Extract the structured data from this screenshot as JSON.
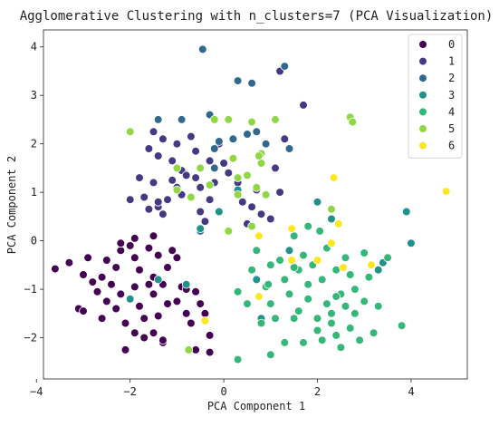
{
  "chart_data": {
    "type": "scatter",
    "title": "Agglomerative Clustering with n_clusters=7 (PCA Visualization)",
    "xlabel": "PCA Component 1",
    "ylabel": "PCA Component 2",
    "xlim": [
      -3.85,
      5.2
    ],
    "ylim": [
      -2.85,
      4.35
    ],
    "x_ticks": [
      -4,
      -2,
      0,
      2,
      4
    ],
    "y_ticks": [
      -2,
      -1,
      0,
      1,
      2,
      3,
      4
    ],
    "grid": false,
    "legend_position": "top-right",
    "colors": [
      "#440154",
      "#443983",
      "#31688e",
      "#21918c",
      "#35b779",
      "#90d743",
      "#fde725"
    ],
    "series": [
      {
        "name": "0",
        "points": [
          [
            -3.6,
            -0.58
          ],
          [
            -3.3,
            -0.45
          ],
          [
            -3.0,
            -0.7
          ],
          [
            -2.9,
            -0.35
          ],
          [
            -3.1,
            -1.4
          ],
          [
            -3.0,
            -1.45
          ],
          [
            -2.8,
            -0.85
          ],
          [
            -2.7,
            -1.05
          ],
          [
            -2.6,
            -0.75
          ],
          [
            -2.5,
            -0.4
          ],
          [
            -2.3,
            -0.55
          ],
          [
            -2.4,
            -0.9
          ],
          [
            -2.2,
            -1.1
          ],
          [
            -2.5,
            -1.25
          ],
          [
            -2.3,
            -1.4
          ],
          [
            -2.6,
            -1.6
          ],
          [
            -2.2,
            -0.2
          ],
          [
            -2.0,
            -0.1
          ],
          [
            -1.9,
            -0.35
          ],
          [
            -1.8,
            -0.6
          ],
          [
            -1.9,
            -0.95
          ],
          [
            -2.0,
            -1.2
          ],
          [
            -1.8,
            -1.35
          ],
          [
            -1.7,
            -1.6
          ],
          [
            -2.1,
            -1.7
          ],
          [
            -1.9,
            -1.9
          ],
          [
            -2.1,
            -2.25
          ],
          [
            -1.6,
            -0.15
          ],
          [
            -1.5,
            0.1
          ],
          [
            -1.4,
            -0.3
          ],
          [
            -1.5,
            -0.75
          ],
          [
            -1.3,
            -0.9
          ],
          [
            -1.5,
            -1.1
          ],
          [
            -1.2,
            -1.3
          ],
          [
            -1.4,
            -1.55
          ],
          [
            -1.5,
            -1.9
          ],
          [
            -1.3,
            -2.1
          ],
          [
            -1.2,
            -0.55
          ],
          [
            -1.0,
            -0.35
          ],
          [
            -0.9,
            -0.95
          ],
          [
            -1.0,
            -1.25
          ],
          [
            -0.8,
            -1.0
          ],
          [
            -0.8,
            -1.5
          ],
          [
            -0.7,
            -1.7
          ],
          [
            -0.6,
            -1.05
          ],
          [
            -0.5,
            -1.3
          ],
          [
            -0.4,
            -1.5
          ],
          [
            -0.3,
            -1.95
          ],
          [
            -0.6,
            -2.25
          ],
          [
            -0.3,
            -2.3
          ],
          [
            -1.7,
            -2.0
          ],
          [
            -1.3,
            -2.05
          ],
          [
            -1.9,
            0.05
          ],
          [
            -2.2,
            -0.05
          ],
          [
            -1.6,
            -0.9
          ],
          [
            -1.1,
            -0.2
          ]
        ]
      },
      {
        "name": "1",
        "points": [
          [
            -2.0,
            0.85
          ],
          [
            -1.8,
            1.3
          ],
          [
            -1.7,
            0.9
          ],
          [
            -1.6,
            0.65
          ],
          [
            -1.6,
            1.9
          ],
          [
            -1.5,
            2.25
          ],
          [
            -1.4,
            1.75
          ],
          [
            -1.5,
            1.2
          ],
          [
            -1.4,
            0.7
          ],
          [
            -1.3,
            0.55
          ],
          [
            -1.2,
            0.85
          ],
          [
            -1.1,
            1.25
          ],
          [
            -1.1,
            1.65
          ],
          [
            -1.0,
            1.1
          ],
          [
            -0.9,
            0.95
          ],
          [
            -0.9,
            1.45
          ],
          [
            -1.0,
            2.0
          ],
          [
            -0.8,
            1.35
          ],
          [
            -0.7,
            2.15
          ],
          [
            -0.6,
            1.85
          ],
          [
            -0.5,
            1.1
          ],
          [
            -0.5,
            0.6
          ],
          [
            -0.4,
            0.4
          ],
          [
            -0.3,
            0.85
          ],
          [
            -0.2,
            1.2
          ],
          [
            -0.3,
            1.65
          ],
          [
            -0.1,
            2.0
          ],
          [
            0.0,
            1.6
          ],
          [
            0.1,
            1.4
          ],
          [
            0.3,
            1.2
          ],
          [
            0.4,
            0.8
          ],
          [
            0.6,
            0.7
          ],
          [
            0.5,
            0.35
          ],
          [
            0.8,
            0.55
          ],
          [
            1.0,
            0.45
          ],
          [
            1.2,
            1.0
          ],
          [
            1.1,
            1.5
          ],
          [
            1.3,
            2.1
          ],
          [
            1.2,
            3.5
          ],
          [
            1.7,
            2.8
          ],
          [
            -1.3,
            2.1
          ],
          [
            -1.4,
            0.8
          ],
          [
            -0.6,
            1.3
          ],
          [
            0.2,
            1.7
          ],
          [
            0.7,
            1.05
          ]
        ]
      },
      {
        "name": "2",
        "points": [
          [
            -0.45,
            3.95
          ],
          [
            0.3,
            3.3
          ],
          [
            0.6,
            3.25
          ],
          [
            1.3,
            3.6
          ],
          [
            1.1,
            2.5
          ],
          [
            0.5,
            2.2
          ],
          [
            0.2,
            2.1
          ],
          [
            -0.3,
            2.6
          ],
          [
            -0.9,
            2.5
          ],
          [
            -0.2,
            1.9
          ],
          [
            -0.1,
            2.05
          ],
          [
            -0.2,
            1.5
          ],
          [
            -0.5,
            0.2
          ],
          [
            0.7,
            2.25
          ],
          [
            0.9,
            2.0
          ],
          [
            1.4,
            1.9
          ],
          [
            -1.4,
            2.5
          ]
        ]
      },
      {
        "name": "3",
        "points": [
          [
            -2.0,
            -1.2
          ],
          [
            -1.4,
            -0.8
          ],
          [
            -0.8,
            -0.9
          ],
          [
            -0.5,
            0.25
          ],
          [
            -0.1,
            0.6
          ],
          [
            0.3,
            1.05
          ],
          [
            1.4,
            -0.2
          ],
          [
            2.0,
            0.8
          ],
          [
            2.3,
            0.45
          ],
          [
            3.3,
            -0.6
          ],
          [
            3.4,
            -0.45
          ],
          [
            3.9,
            0.6
          ],
          [
            4.0,
            -0.05
          ],
          [
            0.7,
            -0.8
          ],
          [
            0.8,
            -1.6
          ]
        ]
      },
      {
        "name": "4",
        "points": [
          [
            0.3,
            -1.05
          ],
          [
            0.5,
            -1.3
          ],
          [
            0.6,
            -0.6
          ],
          [
            0.7,
            -0.2
          ],
          [
            0.8,
            -1.7
          ],
          [
            0.9,
            -0.95
          ],
          [
            1.0,
            -0.5
          ],
          [
            1.0,
            -1.3
          ],
          [
            1.1,
            -1.6
          ],
          [
            1.2,
            -0.4
          ],
          [
            1.3,
            -0.8
          ],
          [
            1.3,
            -2.1
          ],
          [
            1.4,
            -1.1
          ],
          [
            1.5,
            -1.6
          ],
          [
            1.5,
            0.1
          ],
          [
            1.6,
            -0.6
          ],
          [
            1.6,
            -1.45
          ],
          [
            1.7,
            -2.1
          ],
          [
            1.8,
            -0.9
          ],
          [
            1.8,
            -1.2
          ],
          [
            1.8,
            0.3
          ],
          [
            1.9,
            -0.5
          ],
          [
            2.0,
            -1.85
          ],
          [
            2.0,
            -1.6
          ],
          [
            2.1,
            -0.8
          ],
          [
            2.1,
            -2.05
          ],
          [
            2.2,
            -1.3
          ],
          [
            2.2,
            -0.15
          ],
          [
            2.3,
            -1.5
          ],
          [
            2.3,
            -1.7
          ],
          [
            2.4,
            -0.6
          ],
          [
            2.4,
            -1.95
          ],
          [
            2.5,
            -1.1
          ],
          [
            2.5,
            -2.2
          ],
          [
            2.6,
            -1.35
          ],
          [
            2.6,
            -0.35
          ],
          [
            2.7,
            -0.7
          ],
          [
            2.7,
            -1.8
          ],
          [
            2.8,
            -1.0
          ],
          [
            2.8,
            -1.5
          ],
          [
            2.9,
            -2.05
          ],
          [
            3.0,
            -0.25
          ],
          [
            3.0,
            -1.25
          ],
          [
            3.1,
            -0.75
          ],
          [
            3.2,
            -1.9
          ],
          [
            3.3,
            -1.35
          ],
          [
            3.5,
            -0.35
          ],
          [
            3.8,
            -1.75
          ],
          [
            1.0,
            -2.35
          ],
          [
            0.3,
            -2.45
          ],
          [
            1.7,
            -0.3
          ],
          [
            2.05,
            0.2
          ],
          [
            1.5,
            -0.55
          ],
          [
            2.4,
            -1.15
          ],
          [
            0.95,
            -0.9
          ]
        ]
      },
      {
        "name": "5",
        "points": [
          [
            -2.0,
            2.25
          ],
          [
            -0.7,
            0.9
          ],
          [
            -0.5,
            1.5
          ],
          [
            -0.3,
            1.15
          ],
          [
            -0.2,
            2.5
          ],
          [
            0.1,
            2.5
          ],
          [
            0.2,
            1.7
          ],
          [
            0.3,
            1.3
          ],
          [
            0.3,
            0.95
          ],
          [
            0.5,
            1.35
          ],
          [
            0.6,
            2.45
          ],
          [
            0.7,
            1.1
          ],
          [
            0.8,
            1.6
          ],
          [
            0.8,
            1.8
          ],
          [
            0.9,
            0.95
          ],
          [
            1.1,
            2.5
          ],
          [
            -1.0,
            1.5
          ],
          [
            2.3,
            0.65
          ],
          [
            2.7,
            2.55
          ],
          [
            2.75,
            2.45
          ],
          [
            0.1,
            0.2
          ],
          [
            0.6,
            0.3
          ],
          [
            -0.75,
            -2.25
          ],
          [
            -1.0,
            1.05
          ],
          [
            0.75,
            1.75
          ]
        ]
      },
      {
        "name": "6",
        "points": [
          [
            -0.4,
            -1.65
          ],
          [
            0.75,
            -1.15
          ],
          [
            0.75,
            0.1
          ],
          [
            1.45,
            0.25
          ],
          [
            2.0,
            -0.4
          ],
          [
            2.35,
            1.3
          ],
          [
            2.45,
            0.35
          ],
          [
            2.55,
            -0.55
          ],
          [
            3.15,
            -0.5
          ],
          [
            4.75,
            1.02
          ],
          [
            2.3,
            -0.05
          ],
          [
            1.45,
            -0.4
          ]
        ]
      }
    ]
  }
}
